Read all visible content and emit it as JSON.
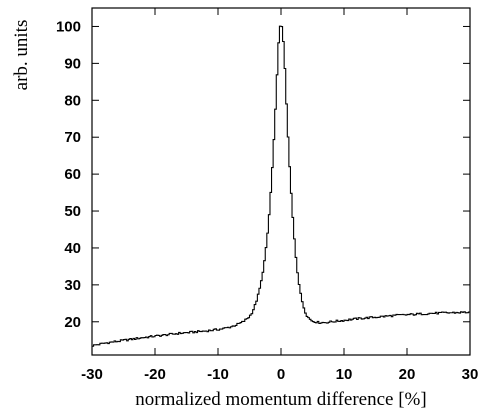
{
  "chart_data": {
    "type": "line",
    "title": "",
    "xlabel": "normalized momentum difference [%]",
    "ylabel": "arb. units",
    "xlim": [
      -30,
      30
    ],
    "ylim": [
      11,
      105
    ],
    "xticks": [
      -30,
      -20,
      -10,
      0,
      10,
      20,
      30
    ],
    "yticks": [
      20,
      30,
      40,
      50,
      60,
      70,
      80,
      90,
      100
    ],
    "grid": false,
    "legend": "none",
    "series": [
      {
        "style": "step",
        "color": "#000000",
        "x": [
          -30,
          -28,
          -26,
          -24,
          -22,
          -20,
          -18,
          -16,
          -14,
          -12,
          -10,
          -9,
          -8,
          -7,
          -6,
          -5,
          -4.5,
          -4,
          -3.5,
          -3,
          -2.5,
          -2,
          -1.5,
          -1,
          -0.75,
          -0.5,
          -0.25,
          0,
          0.25,
          0.5,
          0.75,
          1,
          1.5,
          2,
          2.5,
          3,
          3.5,
          4,
          4.5,
          5,
          6,
          7,
          8,
          9,
          10,
          12,
          14,
          16,
          18,
          20,
          22,
          24,
          26,
          28,
          30
        ],
        "values": [
          13.5,
          14.2,
          14.7,
          15.2,
          15.7,
          16.1,
          16.5,
          16.9,
          17.2,
          17.5,
          17.9,
          18.2,
          18.6,
          19.2,
          20.0,
          21.4,
          22.8,
          25.0,
          28.0,
          32.0,
          38.0,
          46.0,
          58.0,
          73.0,
          82.0,
          92.0,
          99.0,
          101.0,
          99.0,
          93.0,
          84.0,
          74.0,
          58.0,
          45.0,
          35.0,
          28.5,
          24.5,
          22.0,
          20.8,
          20.2,
          19.8,
          19.8,
          20.0,
          20.2,
          20.4,
          20.8,
          21.1,
          21.4,
          21.7,
          21.9,
          22.1,
          22.3,
          22.4,
          22.5,
          22.6
        ]
      }
    ]
  }
}
